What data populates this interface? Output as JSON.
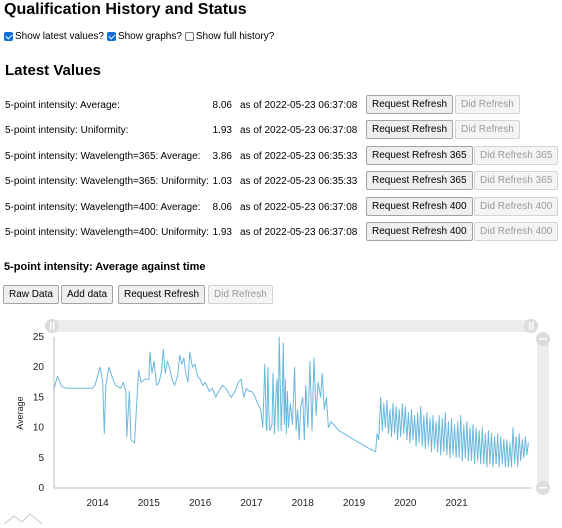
{
  "title": "Qualification History and Status",
  "options": [
    {
      "label": "Show latest values?",
      "checked": true
    },
    {
      "label": "Show graphs?",
      "checked": true
    },
    {
      "label": "Show full history?",
      "checked": false
    }
  ],
  "latest_heading": "Latest Values",
  "rows": [
    {
      "label": "5-point intensity: Average:",
      "value": "8.06",
      "asof": "as of 2022-05-23 06:37:08",
      "request": "Request Refresh",
      "did": "Did Refresh"
    },
    {
      "label": "5-point intensity: Uniformity:",
      "value": "1.93",
      "asof": "as of 2022-05-23 06:37:08",
      "request": "Request Refresh",
      "did": "Did Refresh"
    },
    {
      "label": "5-point intensity: Wavelength=365: Average:",
      "value": "3.86",
      "asof": "as of 2022-05-23 06:35:33",
      "request": "Request Refresh 365",
      "did": "Did Refresh 365"
    },
    {
      "label": "5-point intensity: Wavelength=365: Uniformity:",
      "value": "1.03",
      "asof": "as of 2022-05-23 06:35:33",
      "request": "Request Refresh 365",
      "did": "Did Refresh 365"
    },
    {
      "label": "5-point intensity: Wavelength=400: Average:",
      "value": "8.06",
      "asof": "as of 2022-05-23 06:37:08",
      "request": "Request Refresh 400",
      "did": "Did Refresh 400"
    },
    {
      "label": "5-point intensity: Wavelength=400: Uniformity:",
      "value": "1.93",
      "asof": "as of 2022-05-23 06:37:08",
      "request": "Request Refresh 400",
      "did": "Did Refresh 400"
    }
  ],
  "graph_heading": "5-point intensity: Average against time",
  "graph_toolbar": {
    "raw_data": "Raw Data",
    "add_data": "Add data",
    "request_refresh": "Request Refresh",
    "did_refresh": "Did Refresh"
  },
  "colors": {
    "line": "#6bb8dc",
    "axis": "#bbbbbb",
    "slider": "#d9d9d9",
    "accent": "#0b6fd8"
  },
  "chart_data": {
    "type": "line",
    "title": "",
    "xlabel": "",
    "ylabel": "Average",
    "xlim": [
      2013.15,
      2022.45
    ],
    "ylim": [
      0,
      25
    ],
    "yticks": [
      0,
      5,
      10,
      15,
      20,
      25
    ],
    "xticks": [
      2014,
      2015,
      2016,
      2017,
      2018,
      2019,
      2020,
      2021
    ],
    "grid": false,
    "series": [
      {
        "values": [
          [
            2013.15,
            16.5
          ],
          [
            2013.22,
            18.5
          ],
          [
            2013.3,
            16.8
          ],
          [
            2013.4,
            16.5
          ],
          [
            2013.6,
            16.5
          ],
          [
            2013.9,
            16.5
          ],
          [
            2013.95,
            17
          ],
          [
            2014.05,
            20
          ],
          [
            2014.1,
            17.5
          ],
          [
            2014.13,
            9
          ],
          [
            2014.16,
            17
          ],
          [
            2014.22,
            20
          ],
          [
            2014.3,
            18
          ],
          [
            2014.35,
            17
          ],
          [
            2014.45,
            16.5
          ],
          [
            2014.5,
            17.5
          ],
          [
            2014.55,
            16
          ],
          [
            2014.57,
            8.5
          ],
          [
            2014.62,
            16
          ],
          [
            2014.65,
            8
          ],
          [
            2014.72,
            7.5
          ],
          [
            2014.8,
            19.5
          ],
          [
            2014.85,
            17.5
          ],
          [
            2014.92,
            18
          ],
          [
            2015.0,
            18
          ],
          [
            2015.02,
            22.5
          ],
          [
            2015.06,
            19
          ],
          [
            2015.1,
            21
          ],
          [
            2015.15,
            17
          ],
          [
            2015.2,
            17.5
          ],
          [
            2015.25,
            19.5
          ],
          [
            2015.28,
            23
          ],
          [
            2015.32,
            19
          ],
          [
            2015.36,
            21
          ],
          [
            2015.4,
            20
          ],
          [
            2015.45,
            18
          ],
          [
            2015.5,
            17
          ],
          [
            2015.56,
            18.5
          ],
          [
            2015.6,
            22
          ],
          [
            2015.64,
            20.5
          ],
          [
            2015.68,
            21.5
          ],
          [
            2015.72,
            19
          ],
          [
            2015.76,
            17.5
          ],
          [
            2015.8,
            22.5
          ],
          [
            2015.85,
            20
          ],
          [
            2015.9,
            20.5
          ],
          [
            2015.95,
            18.5
          ],
          [
            2016.0,
            18
          ],
          [
            2016.05,
            17
          ],
          [
            2016.1,
            17.5
          ],
          [
            2016.18,
            16
          ],
          [
            2016.24,
            16.5
          ],
          [
            2016.3,
            15
          ],
          [
            2016.36,
            16
          ],
          [
            2016.44,
            17
          ],
          [
            2016.5,
            16.5
          ],
          [
            2016.6,
            15
          ],
          [
            2016.68,
            16
          ],
          [
            2016.74,
            17.5
          ],
          [
            2016.8,
            18
          ],
          [
            2016.85,
            15
          ],
          [
            2016.9,
            16.5
          ],
          [
            2016.96,
            16
          ],
          [
            2017.0,
            16
          ],
          [
            2017.05,
            15.5
          ],
          [
            2017.12,
            14
          ],
          [
            2017.18,
            13
          ],
          [
            2017.22,
            10
          ],
          [
            2017.26,
            20.5
          ],
          [
            2017.29,
            10
          ],
          [
            2017.3,
            9.5
          ],
          [
            2017.32,
            20
          ],
          [
            2017.34,
            12.5
          ],
          [
            2017.36,
            9.5
          ],
          [
            2017.4,
            10.5
          ],
          [
            2017.42,
            19
          ],
          [
            2017.45,
            9
          ],
          [
            2017.48,
            16
          ],
          [
            2017.5,
            18
          ],
          [
            2017.52,
            9.5
          ],
          [
            2017.54,
            25
          ],
          [
            2017.56,
            17.5
          ],
          [
            2017.58,
            9.5
          ],
          [
            2017.6,
            15
          ],
          [
            2017.62,
            24
          ],
          [
            2017.64,
            10.5
          ],
          [
            2017.66,
            18
          ],
          [
            2017.68,
            9
          ],
          [
            2017.7,
            16
          ],
          [
            2017.72,
            10
          ],
          [
            2017.76,
            14
          ],
          [
            2017.8,
            10.5
          ],
          [
            2017.84,
            20
          ],
          [
            2017.87,
            9.5
          ],
          [
            2017.9,
            13
          ],
          [
            2017.93,
            8
          ],
          [
            2017.96,
            13.5
          ],
          [
            2018.0,
            15
          ],
          [
            2018.03,
            8
          ],
          [
            2018.06,
            17
          ],
          [
            2018.1,
            10
          ],
          [
            2018.14,
            21
          ],
          [
            2018.18,
            9.5
          ],
          [
            2018.22,
            21.5
          ],
          [
            2018.26,
            12
          ],
          [
            2018.3,
            17.5
          ],
          [
            2018.35,
            15
          ],
          [
            2018.38,
            19
          ],
          [
            2018.42,
            13
          ],
          [
            2018.46,
            15
          ],
          [
            2018.5,
            10
          ],
          [
            2018.55,
            11
          ],
          [
            2018.6,
            10.5
          ],
          [
            2018.65,
            10
          ],
          [
            2018.7,
            9.5
          ],
          [
            2018.8,
            9
          ],
          [
            2018.9,
            8.5
          ],
          [
            2019.0,
            8
          ],
          [
            2019.1,
            7.5
          ],
          [
            2019.2,
            7
          ],
          [
            2019.3,
            6.5
          ],
          [
            2019.42,
            6
          ],
          [
            2019.45,
            9
          ],
          [
            2019.48,
            8
          ],
          [
            2019.52,
            15
          ],
          [
            2019.55,
            9.5
          ],
          [
            2019.58,
            14
          ],
          [
            2019.61,
            10
          ],
          [
            2019.64,
            14.5
          ],
          [
            2019.67,
            9
          ],
          [
            2019.7,
            13
          ],
          [
            2019.73,
            8.5
          ],
          [
            2019.76,
            14
          ],
          [
            2019.79,
            9
          ],
          [
            2019.82,
            13.5
          ],
          [
            2019.85,
            8
          ],
          [
            2019.88,
            13
          ],
          [
            2019.91,
            8.5
          ],
          [
            2019.94,
            14
          ],
          [
            2019.97,
            9
          ],
          [
            2020.0,
            13.5
          ],
          [
            2020.03,
            8
          ],
          [
            2020.06,
            12.5
          ],
          [
            2020.09,
            7.5
          ],
          [
            2020.12,
            13
          ],
          [
            2020.15,
            8
          ],
          [
            2020.18,
            12
          ],
          [
            2020.21,
            7
          ],
          [
            2020.24,
            12.5
          ],
          [
            2020.27,
            7.5
          ],
          [
            2020.3,
            13.5
          ],
          [
            2020.33,
            7
          ],
          [
            2020.36,
            12
          ],
          [
            2020.39,
            6.5
          ],
          [
            2020.42,
            12.5
          ],
          [
            2020.45,
            7
          ],
          [
            2020.48,
            11.5
          ],
          [
            2020.51,
            6
          ],
          [
            2020.54,
            12
          ],
          [
            2020.57,
            6.5
          ],
          [
            2020.6,
            11
          ],
          [
            2020.63,
            6
          ],
          [
            2020.66,
            12
          ],
          [
            2020.69,
            5.5
          ],
          [
            2020.72,
            11.5
          ],
          [
            2020.75,
            6
          ],
          [
            2020.78,
            12.5
          ],
          [
            2020.81,
            5.5
          ],
          [
            2020.84,
            11
          ],
          [
            2020.87,
            5
          ],
          [
            2020.9,
            11.5
          ],
          [
            2020.93,
            5.5
          ],
          [
            2020.96,
            10.5
          ],
          [
            2020.99,
            5
          ],
          [
            2021.02,
            11
          ],
          [
            2021.05,
            5
          ],
          [
            2021.08,
            12
          ],
          [
            2021.11,
            4.5
          ],
          [
            2021.14,
            10.5
          ],
          [
            2021.17,
            5
          ],
          [
            2021.2,
            11
          ],
          [
            2021.23,
            4.5
          ],
          [
            2021.26,
            10
          ],
          [
            2021.29,
            4.5
          ],
          [
            2021.32,
            10.5
          ],
          [
            2021.35,
            4
          ],
          [
            2021.38,
            10
          ],
          [
            2021.41,
            4.5
          ],
          [
            2021.44,
            9.5
          ],
          [
            2021.47,
            4
          ],
          [
            2021.5,
            10
          ],
          [
            2021.53,
            4
          ],
          [
            2021.56,
            9
          ],
          [
            2021.59,
            3.5
          ],
          [
            2021.62,
            9.5
          ],
          [
            2021.65,
            4
          ],
          [
            2021.68,
            9
          ],
          [
            2021.71,
            3.5
          ],
          [
            2021.74,
            8.5
          ],
          [
            2021.77,
            4
          ],
          [
            2021.8,
            9
          ],
          [
            2021.83,
            3.5
          ],
          [
            2021.86,
            8.5
          ],
          [
            2021.89,
            4
          ],
          [
            2021.92,
            8
          ],
          [
            2021.95,
            3.5
          ],
          [
            2021.98,
            8
          ],
          [
            2022.01,
            3.5
          ],
          [
            2022.04,
            7.5
          ],
          [
            2022.07,
            3.5
          ],
          [
            2022.1,
            10
          ],
          [
            2022.13,
            4
          ],
          [
            2022.16,
            8.5
          ],
          [
            2022.19,
            3.5
          ],
          [
            2022.22,
            9
          ],
          [
            2022.25,
            4.5
          ],
          [
            2022.28,
            8
          ],
          [
            2022.31,
            5
          ],
          [
            2022.34,
            8.5
          ],
          [
            2022.37,
            5.5
          ],
          [
            2022.4,
            7.5
          ]
        ]
      }
    ]
  }
}
